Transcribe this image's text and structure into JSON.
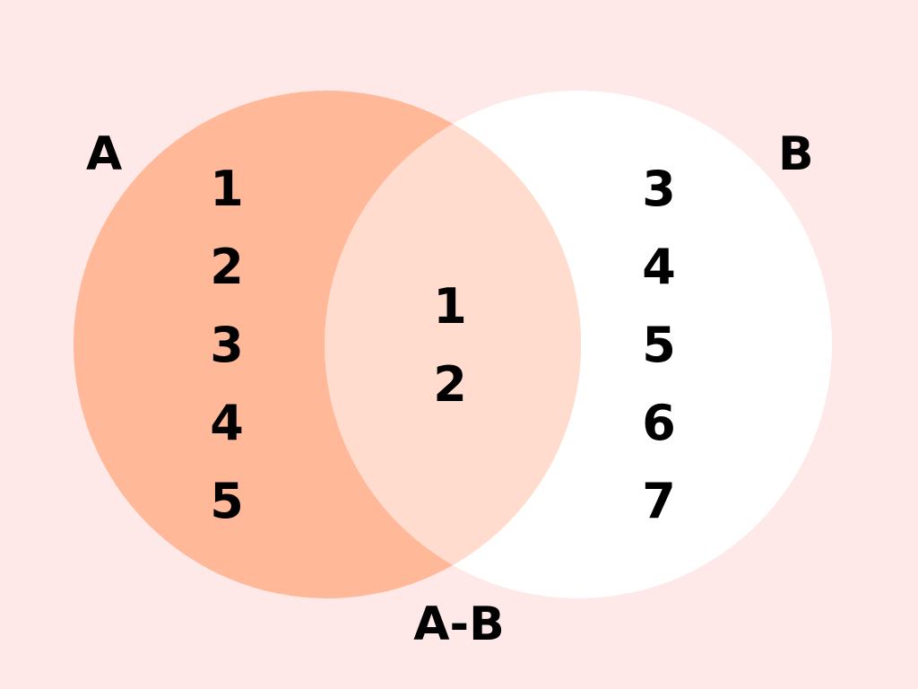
{
  "labels": {
    "set_a": "A",
    "set_b": "B",
    "caption": "A-B"
  },
  "set_a_only": [
    "1",
    "2",
    "3",
    "4",
    "5"
  ],
  "intersection": [
    "1",
    "2"
  ],
  "set_b_only": [
    "3",
    "4",
    "5",
    "6",
    "7"
  ],
  "colors": {
    "background": "#ffe9e8",
    "set_a_fill": "#ffb898",
    "set_b_fill": "#ffffff",
    "intersection_fill": "#ffdccd",
    "text": "#000000"
  }
}
